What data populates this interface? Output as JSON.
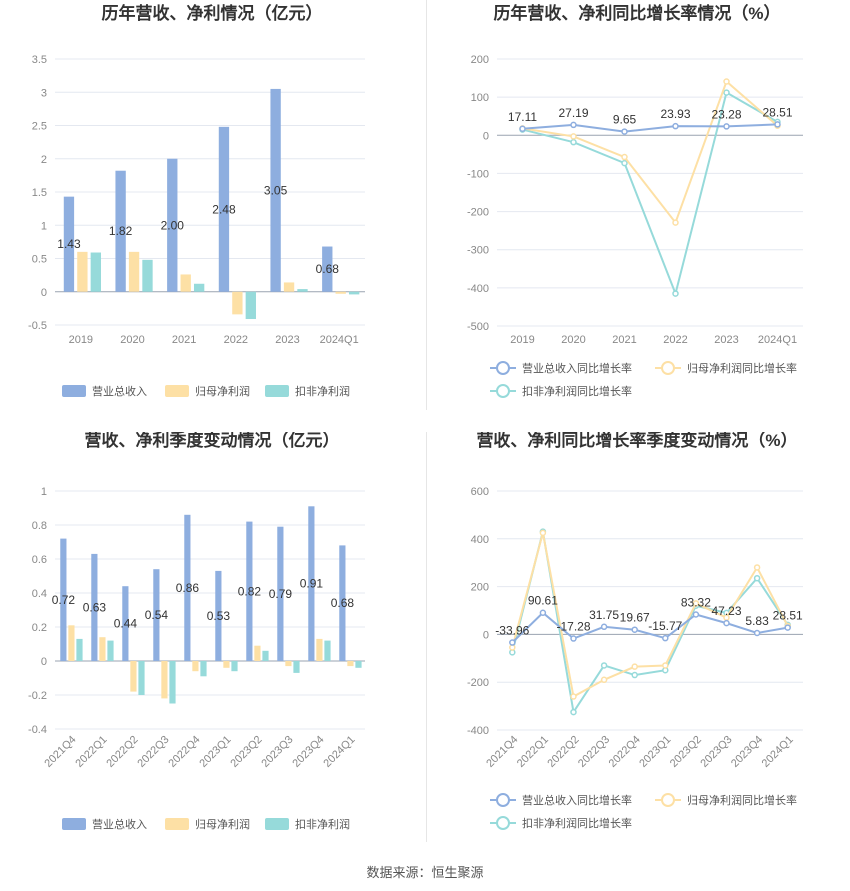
{
  "source_text": "数据来源：恒生聚源",
  "colors": {
    "blue": "#8eaedf",
    "orange": "#fde0a5",
    "teal": "#96dada",
    "grid": "#e4e8f0"
  },
  "chart_data": [
    {
      "id": "annual-bars",
      "type": "bar",
      "title": "历年营收、净利情况（亿元）",
      "categories": [
        "2019",
        "2020",
        "2021",
        "2022",
        "2023",
        "2024Q1"
      ],
      "series": [
        {
          "name": "营业总收入",
          "values": [
            1.43,
            1.82,
            2.0,
            2.48,
            3.05,
            0.68
          ],
          "labels": [
            "1.43",
            "1.82",
            "2.00",
            "2.48",
            "3.05",
            "0.68"
          ]
        },
        {
          "name": "归母净利润",
          "values": [
            0.6,
            0.6,
            0.26,
            -0.34,
            0.14,
            -0.03
          ]
        },
        {
          "name": "扣非净利润",
          "values": [
            0.59,
            0.48,
            0.12,
            -0.41,
            0.04,
            -0.04
          ]
        }
      ],
      "ylim": [
        -0.5,
        3.5
      ],
      "yticks": [
        "3.5",
        "3",
        "2.5",
        "2",
        "1.5",
        "1",
        "0.5",
        "0",
        "-0.5"
      ],
      "ytick_values": [
        3.5,
        3,
        2.5,
        2,
        1.5,
        1,
        0.5,
        0,
        -0.5
      ]
    },
    {
      "id": "annual-growth",
      "type": "line",
      "title": "历年营收、净利同比增长率情况（%）",
      "categories": [
        "2019",
        "2020",
        "2021",
        "2022",
        "2023",
        "2024Q1"
      ],
      "series": [
        {
          "name": "营业总收入同比增长率",
          "values": [
            17.11,
            27.19,
            9.65,
            23.93,
            23.28,
            28.51
          ],
          "labels": [
            "17.11",
            "27.19",
            "9.65",
            "23.93",
            "23.28",
            "28.51"
          ]
        },
        {
          "name": "归母净利润同比增长率",
          "values": [
            18,
            -3,
            -57,
            -229,
            141,
            25
          ]
        },
        {
          "name": "扣非净利润同比增长率",
          "values": [
            15,
            -18,
            -73,
            -415,
            112,
            35
          ]
        }
      ],
      "ylim": [
        -500,
        200
      ],
      "yticks": [
        "200",
        "100",
        "0",
        "-100",
        "-200",
        "-300",
        "-400",
        "-500"
      ],
      "ytick_values": [
        200,
        100,
        0,
        -100,
        -200,
        -300,
        -400,
        -500
      ]
    },
    {
      "id": "quarterly-bars",
      "type": "bar",
      "title": "营收、净利季度变动情况（亿元）",
      "categories": [
        "2021Q4",
        "2022Q1",
        "2022Q2",
        "2022Q3",
        "2022Q4",
        "2023Q1",
        "2023Q2",
        "2023Q3",
        "2023Q4",
        "2024Q1"
      ],
      "series": [
        {
          "name": "营业总收入",
          "values": [
            0.72,
            0.63,
            0.44,
            0.54,
            0.86,
            0.53,
            0.82,
            0.79,
            0.91,
            0.68
          ],
          "labels": [
            "0.72",
            "0.63",
            "0.44",
            "0.54",
            "0.86",
            "0.53",
            "0.82",
            "0.79",
            "0.91",
            "0.68"
          ]
        },
        {
          "name": "归母净利润",
          "values": [
            0.21,
            0.14,
            -0.18,
            -0.22,
            -0.06,
            -0.04,
            0.09,
            -0.03,
            0.13,
            -0.03
          ]
        },
        {
          "name": "扣非净利润",
          "values": [
            0.13,
            0.12,
            -0.2,
            -0.25,
            -0.09,
            -0.06,
            0.06,
            -0.07,
            0.12,
            -0.04
          ]
        }
      ],
      "ylim": [
        -0.4,
        1
      ],
      "yticks": [
        "1",
        "0.8",
        "0.6",
        "0.4",
        "0.2",
        "0",
        "-0.2",
        "-0.4"
      ],
      "ytick_values": [
        1,
        0.8,
        0.6,
        0.4,
        0.2,
        0,
        -0.2,
        -0.4
      ]
    },
    {
      "id": "quarterly-growth",
      "type": "line",
      "title": "营收、净利同比增长率季度变动情况（%）",
      "categories": [
        "2021Q4",
        "2022Q1",
        "2022Q2",
        "2022Q3",
        "2022Q4",
        "2023Q1",
        "2023Q2",
        "2023Q3",
        "2023Q4",
        "2024Q1"
      ],
      "series": [
        {
          "name": "营业总收入同比增长率",
          "values": [
            -33.96,
            90.61,
            -17.28,
            31.75,
            19.67,
            -15.77,
            83.32,
            47.23,
            5.83,
            28.51
          ],
          "labels": [
            "-33.96",
            "90.61",
            "-17.28",
            "31.75",
            "19.67",
            "-15.77",
            "83.32",
            "47.23",
            "5.83",
            "28.51"
          ]
        },
        {
          "name": "归母净利润同比增长率",
          "values": [
            -55,
            425,
            -260,
            -190,
            -135,
            -130,
            130,
            70,
            280,
            35
          ]
        },
        {
          "name": "扣非净利润同比增长率",
          "values": [
            -75,
            430,
            -325,
            -130,
            -170,
            -150,
            120,
            90,
            235,
            40
          ]
        }
      ],
      "ylim": [
        -400,
        600
      ],
      "yticks": [
        "600",
        "400",
        "200",
        "0",
        "-200",
        "-400"
      ],
      "ytick_values": [
        600,
        400,
        200,
        0,
        -200,
        -400
      ]
    }
  ]
}
